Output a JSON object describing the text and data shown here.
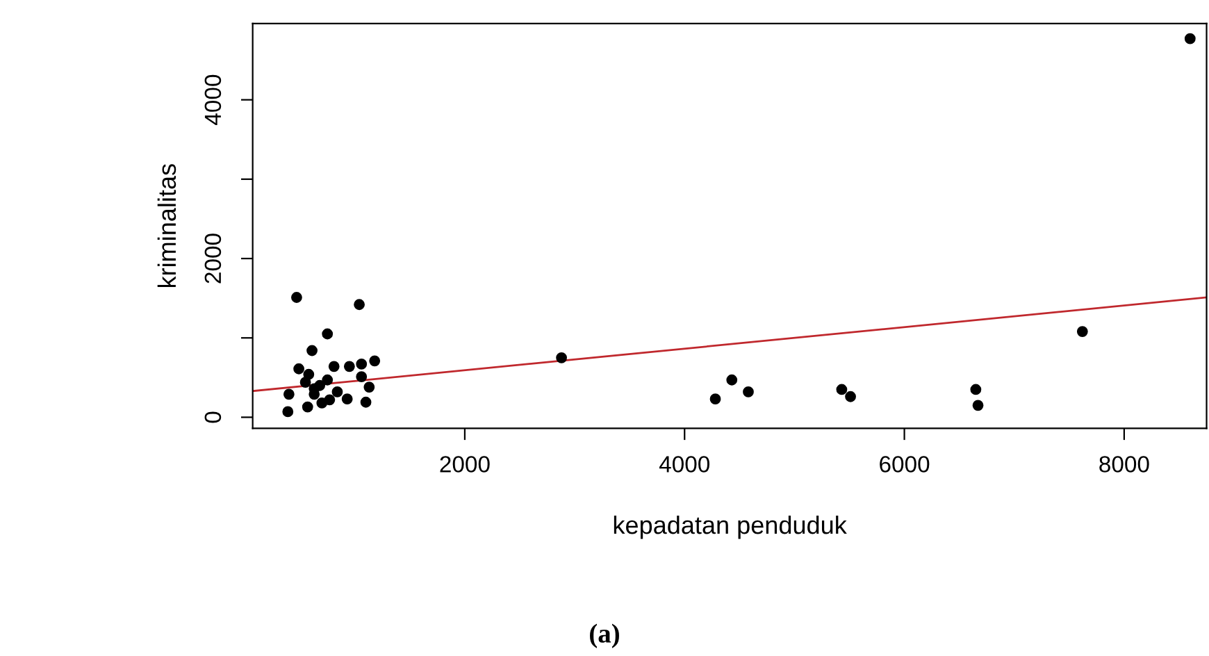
{
  "chart_data": {
    "type": "scatter",
    "xlabel": "kepadatan penduduk",
    "ylabel": "kriminalitas",
    "annotations": [
      "(a)"
    ],
    "xlim": [
      70,
      8750
    ],
    "ylim": [
      -140,
      4960
    ],
    "xticks": [
      2000,
      4000,
      6000,
      8000
    ],
    "yticks": [
      0,
      {
        "value": 1000,
        "label": null
      },
      2000,
      {
        "value": 3000,
        "label": null
      },
      4000
    ],
    "grid": false,
    "legend": false,
    "marker": "circle",
    "series": [
      {
        "color": "#000000",
        "x": [
          470,
          1040,
          750,
          610,
          490,
          580,
          810,
          950,
          1060,
          1180,
          550,
          680,
          750,
          1060,
          1130,
          400,
          630,
          840,
          930,
          770,
          700,
          570,
          1100,
          390,
          630,
          2880,
          4280,
          4430,
          4580,
          5430,
          5510,
          6650,
          6670,
          7620,
          8600
        ],
        "values": [
          1510,
          1420,
          1050,
          840,
          610,
          540,
          640,
          640,
          670,
          710,
          440,
          400,
          470,
          510,
          380,
          290,
          290,
          320,
          230,
          220,
          180,
          130,
          190,
          70,
          360,
          750,
          230,
          470,
          320,
          350,
          260,
          350,
          150,
          1080,
          4770
        ]
      },
      {
        "type": "line",
        "color": "#c0282d",
        "line_style": "solid",
        "marker": "none",
        "x": [
          70,
          8750
        ],
        "values": [
          330,
          1510
        ]
      }
    ]
  }
}
